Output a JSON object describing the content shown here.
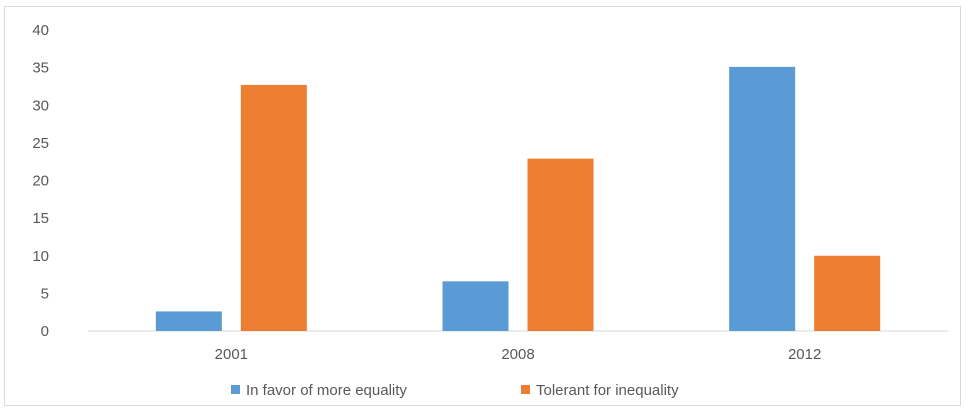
{
  "chart_data": {
    "type": "bar",
    "categories": [
      "2001",
      "2008",
      "2012"
    ],
    "series": [
      {
        "name": "In favor of more equality",
        "values": [
          2.6,
          6.6,
          35.1
        ],
        "color": "#5b9bd5"
      },
      {
        "name": "Tolerant for inequality",
        "values": [
          32.7,
          22.9,
          10.0
        ],
        "color": "#ed7d31"
      }
    ],
    "ylim": [
      0,
      40
    ],
    "yticks": [
      "0",
      "5",
      "10",
      "15",
      "20",
      "25",
      "30",
      "35",
      "40"
    ],
    "grid": false,
    "legend_position": "bottom"
  }
}
